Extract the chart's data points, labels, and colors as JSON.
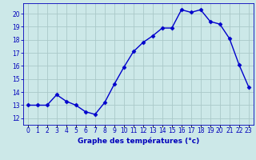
{
  "hours": [
    0,
    1,
    2,
    3,
    4,
    5,
    6,
    7,
    8,
    9,
    10,
    11,
    12,
    13,
    14,
    15,
    16,
    17,
    18,
    19,
    20,
    21,
    22,
    23
  ],
  "temps": [
    13.0,
    13.0,
    13.0,
    13.8,
    13.3,
    13.0,
    12.5,
    12.3,
    13.2,
    14.6,
    15.9,
    17.1,
    17.8,
    18.3,
    18.9,
    18.9,
    20.3,
    20.1,
    20.3,
    19.4,
    19.2,
    18.1,
    16.1,
    14.4
  ],
  "line_color": "#0000cc",
  "marker": "D",
  "marker_size": 2.5,
  "bg_color": "#cce8e8",
  "grid_color": "#aac8c8",
  "xlabel": "Graphe des températures (°c)",
  "ylim": [
    11.5,
    20.8
  ],
  "yticks": [
    12,
    13,
    14,
    15,
    16,
    17,
    18,
    19,
    20
  ],
  "xlim": [
    -0.5,
    23.5
  ],
  "tick_color": "#0000bb",
  "tick_fontsize": 5.5,
  "ylabel_fontsize": 5.5,
  "xlabel_fontsize": 6.5,
  "linewidth": 1.0
}
